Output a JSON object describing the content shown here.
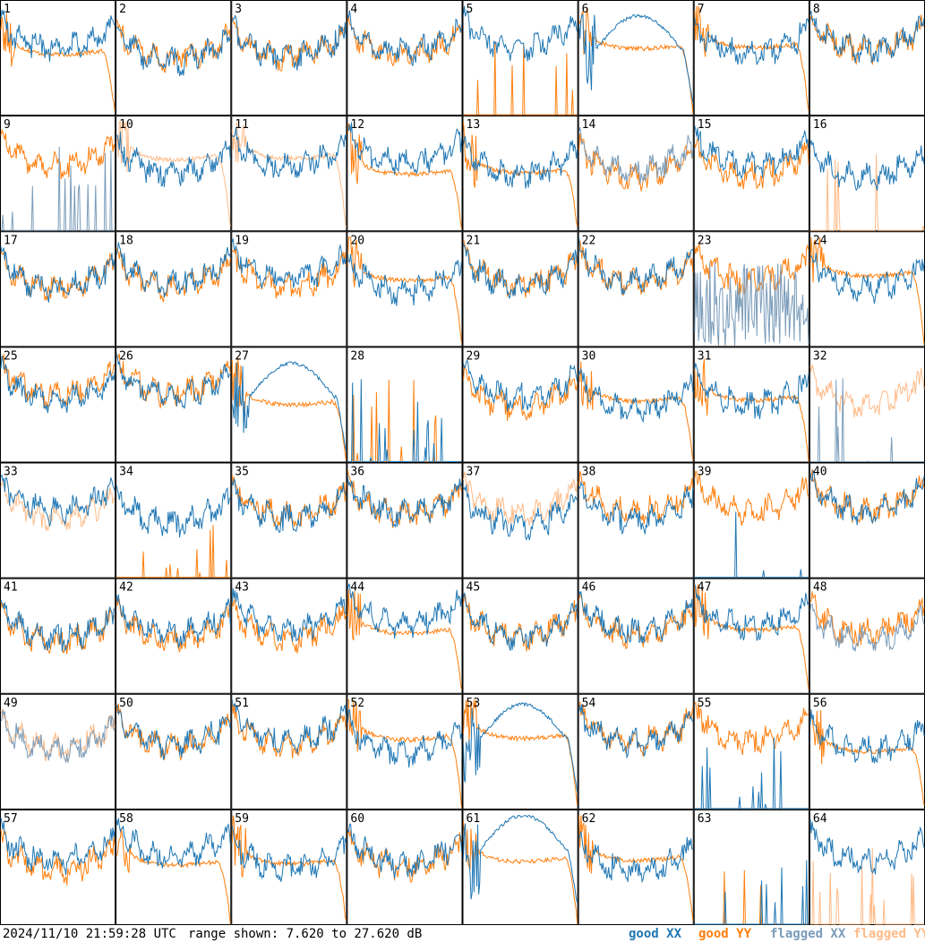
{
  "footer": {
    "timestamp": "2024/11/10 21:59:28 UTC",
    "range_text": "range shown: 7.620 to 27.620 dB",
    "legend": {
      "good_xx": "good XX",
      "good_yy": "good YY",
      "flagged_xx": "flagged XX",
      "flagged_yy": "flagged YY"
    }
  },
  "colors": {
    "good_xx": "#1f77b4",
    "good_yy": "#ff7f0e",
    "flagged_xx": "#7a9cba",
    "flagged_yy": "#ffbb88"
  },
  "chart_data": {
    "type": "line",
    "layout": "8x8 grid of small panels",
    "ylim": [
      7.62,
      27.62
    ],
    "unit": "dB",
    "panel_count": 64,
    "series_legend": [
      "good XX",
      "good YY",
      "flagged XX",
      "flagged YY"
    ],
    "panels": [
      {
        "id": "1",
        "xx": "good",
        "yy": "good",
        "xx_shape": "ripple",
        "yy_shape": "droop"
      },
      {
        "id": "2",
        "xx": "good",
        "yy": "good",
        "xx_shape": "ripple",
        "yy_shape": "ripple"
      },
      {
        "id": "3",
        "xx": "good",
        "yy": "good",
        "xx_shape": "ripple",
        "yy_shape": "ripple"
      },
      {
        "id": "4",
        "xx": "good",
        "yy": "good",
        "xx_shape": "ripple",
        "yy_shape": "ripple"
      },
      {
        "id": "5",
        "xx": "good",
        "yy": "good",
        "xx_shape": "ripple",
        "yy_shape": "spikes"
      },
      {
        "id": "6",
        "xx": "good",
        "yy": "good",
        "xx_shape": "bump",
        "yy_shape": "droop"
      },
      {
        "id": "7",
        "xx": "good",
        "yy": "good",
        "xx_shape": "ripple",
        "yy_shape": "droop"
      },
      {
        "id": "8",
        "xx": "good",
        "yy": "good",
        "xx_shape": "ripple",
        "yy_shape": "ripple"
      },
      {
        "id": "9",
        "xx": "flagged",
        "yy": "good",
        "xx_shape": "spikes",
        "yy_shape": "ripple"
      },
      {
        "id": "10",
        "xx": "good",
        "yy": "flagged",
        "xx_shape": "ripple",
        "yy_shape": "droop"
      },
      {
        "id": "11",
        "xx": "good",
        "yy": "flagged",
        "xx_shape": "ripple",
        "yy_shape": "droop"
      },
      {
        "id": "12",
        "xx": "good",
        "yy": "good",
        "xx_shape": "ripple",
        "yy_shape": "droop"
      },
      {
        "id": "13",
        "xx": "good",
        "yy": "good",
        "xx_shape": "ripple",
        "yy_shape": "droop"
      },
      {
        "id": "14",
        "xx": "flagged",
        "yy": "good",
        "xx_shape": "ripple",
        "yy_shape": "ripple"
      },
      {
        "id": "15",
        "xx": "good",
        "yy": "good",
        "xx_shape": "ripple",
        "yy_shape": "ripple"
      },
      {
        "id": "16",
        "xx": "good",
        "yy": "flagged",
        "xx_shape": "ripple",
        "yy_shape": "spikes"
      },
      {
        "id": "17",
        "xx": "good",
        "yy": "good",
        "xx_shape": "ripple",
        "yy_shape": "ripple"
      },
      {
        "id": "18",
        "xx": "good",
        "yy": "good",
        "xx_shape": "ripple",
        "yy_shape": "ripple"
      },
      {
        "id": "19",
        "xx": "good",
        "yy": "good",
        "xx_shape": "ripple",
        "yy_shape": "ripple"
      },
      {
        "id": "20",
        "xx": "good",
        "yy": "good",
        "xx_shape": "ripple",
        "yy_shape": "droop"
      },
      {
        "id": "21",
        "xx": "good",
        "yy": "good",
        "xx_shape": "ripple",
        "yy_shape": "ripple"
      },
      {
        "id": "22",
        "xx": "good",
        "yy": "good",
        "xx_shape": "ripple",
        "yy_shape": "ripple"
      },
      {
        "id": "23",
        "xx": "flagged",
        "yy": "good",
        "xx_shape": "noise",
        "yy_shape": "ripple"
      },
      {
        "id": "24",
        "xx": "good",
        "yy": "good",
        "xx_shape": "ripple",
        "yy_shape": "droop"
      },
      {
        "id": "25",
        "xx": "good",
        "yy": "good",
        "xx_shape": "ripple",
        "yy_shape": "ripple"
      },
      {
        "id": "26",
        "xx": "good",
        "yy": "good",
        "xx_shape": "ripple",
        "yy_shape": "ripple"
      },
      {
        "id": "27",
        "xx": "good",
        "yy": "good",
        "xx_shape": "bump",
        "yy_shape": "droop"
      },
      {
        "id": "28",
        "xx": "good",
        "yy": "good",
        "xx_shape": "spikes",
        "yy_shape": "spikes"
      },
      {
        "id": "29",
        "xx": "good",
        "yy": "good",
        "xx_shape": "ripple",
        "yy_shape": "ripple"
      },
      {
        "id": "30",
        "xx": "good",
        "yy": "good",
        "xx_shape": "ripple",
        "yy_shape": "droop"
      },
      {
        "id": "31",
        "xx": "good",
        "yy": "good",
        "xx_shape": "ripple",
        "yy_shape": "droop"
      },
      {
        "id": "32",
        "xx": "flagged",
        "yy": "flagged",
        "xx_shape": "spikes",
        "yy_shape": "ripple"
      },
      {
        "id": "33",
        "xx": "good",
        "yy": "flagged",
        "xx_shape": "ripple",
        "yy_shape": "ripple"
      },
      {
        "id": "34",
        "xx": "good",
        "yy": "good",
        "xx_shape": "ripple",
        "yy_shape": "spikes"
      },
      {
        "id": "35",
        "xx": "good",
        "yy": "good",
        "xx_shape": "ripple",
        "yy_shape": "ripple"
      },
      {
        "id": "36",
        "xx": "good",
        "yy": "good",
        "xx_shape": "ripple",
        "yy_shape": "ripple"
      },
      {
        "id": "37",
        "xx": "good",
        "yy": "flagged",
        "xx_shape": "ripple",
        "yy_shape": "ripple"
      },
      {
        "id": "38",
        "xx": "good",
        "yy": "good",
        "xx_shape": "ripple",
        "yy_shape": "ripple"
      },
      {
        "id": "39",
        "xx": "good",
        "yy": "good",
        "xx_shape": "spikes",
        "yy_shape": "ripple"
      },
      {
        "id": "40",
        "xx": "good",
        "yy": "good",
        "xx_shape": "ripple",
        "yy_shape": "ripple"
      },
      {
        "id": "41",
        "xx": "good",
        "yy": "good",
        "xx_shape": "ripple",
        "yy_shape": "ripple"
      },
      {
        "id": "42",
        "xx": "good",
        "yy": "good",
        "xx_shape": "ripple",
        "yy_shape": "ripple"
      },
      {
        "id": "43",
        "xx": "good",
        "yy": "good",
        "xx_shape": "ripple",
        "yy_shape": "ripple"
      },
      {
        "id": "44",
        "xx": "good",
        "yy": "good",
        "xx_shape": "ripple",
        "yy_shape": "droop"
      },
      {
        "id": "45",
        "xx": "good",
        "yy": "good",
        "xx_shape": "ripple",
        "yy_shape": "ripple"
      },
      {
        "id": "46",
        "xx": "good",
        "yy": "good",
        "xx_shape": "ripple",
        "yy_shape": "ripple"
      },
      {
        "id": "47",
        "xx": "good",
        "yy": "good",
        "xx_shape": "ripple",
        "yy_shape": "droop"
      },
      {
        "id": "48",
        "xx": "flagged",
        "yy": "good",
        "xx_shape": "ripple",
        "yy_shape": "ripple"
      },
      {
        "id": "49",
        "xx": "flagged",
        "yy": "flagged",
        "xx_shape": "ripple",
        "yy_shape": "ripple"
      },
      {
        "id": "50",
        "xx": "good",
        "yy": "good",
        "xx_shape": "ripple",
        "yy_shape": "ripple"
      },
      {
        "id": "51",
        "xx": "good",
        "yy": "good",
        "xx_shape": "ripple",
        "yy_shape": "ripple"
      },
      {
        "id": "52",
        "xx": "good",
        "yy": "good",
        "xx_shape": "ripple",
        "yy_shape": "droop"
      },
      {
        "id": "53",
        "xx": "good",
        "yy": "good",
        "xx_shape": "bump",
        "yy_shape": "droop"
      },
      {
        "id": "54",
        "xx": "good",
        "yy": "good",
        "xx_shape": "ripple",
        "yy_shape": "ripple"
      },
      {
        "id": "55",
        "xx": "good",
        "yy": "good",
        "xx_shape": "spikes",
        "yy_shape": "ripple"
      },
      {
        "id": "56",
        "xx": "good",
        "yy": "good",
        "xx_shape": "ripple",
        "yy_shape": "droop"
      },
      {
        "id": "57",
        "xx": "good",
        "yy": "good",
        "xx_shape": "ripple",
        "yy_shape": "ripple"
      },
      {
        "id": "58",
        "xx": "good",
        "yy": "good",
        "xx_shape": "ripple",
        "yy_shape": "droop"
      },
      {
        "id": "59",
        "xx": "good",
        "yy": "good",
        "xx_shape": "ripple",
        "yy_shape": "droop"
      },
      {
        "id": "60",
        "xx": "good",
        "yy": "good",
        "xx_shape": "ripple",
        "yy_shape": "ripple"
      },
      {
        "id": "61",
        "xx": "good",
        "yy": "good",
        "xx_shape": "bump",
        "yy_shape": "droop"
      },
      {
        "id": "62",
        "xx": "good",
        "yy": "good",
        "xx_shape": "ripple",
        "yy_shape": "droop"
      },
      {
        "id": "63",
        "xx": "good",
        "yy": "good",
        "xx_shape": "spikes",
        "yy_shape": "spikes"
      },
      {
        "id": "64",
        "xx": "good",
        "yy": "flagged",
        "xx_shape": "ripple",
        "yy_shape": "spikes"
      }
    ]
  }
}
